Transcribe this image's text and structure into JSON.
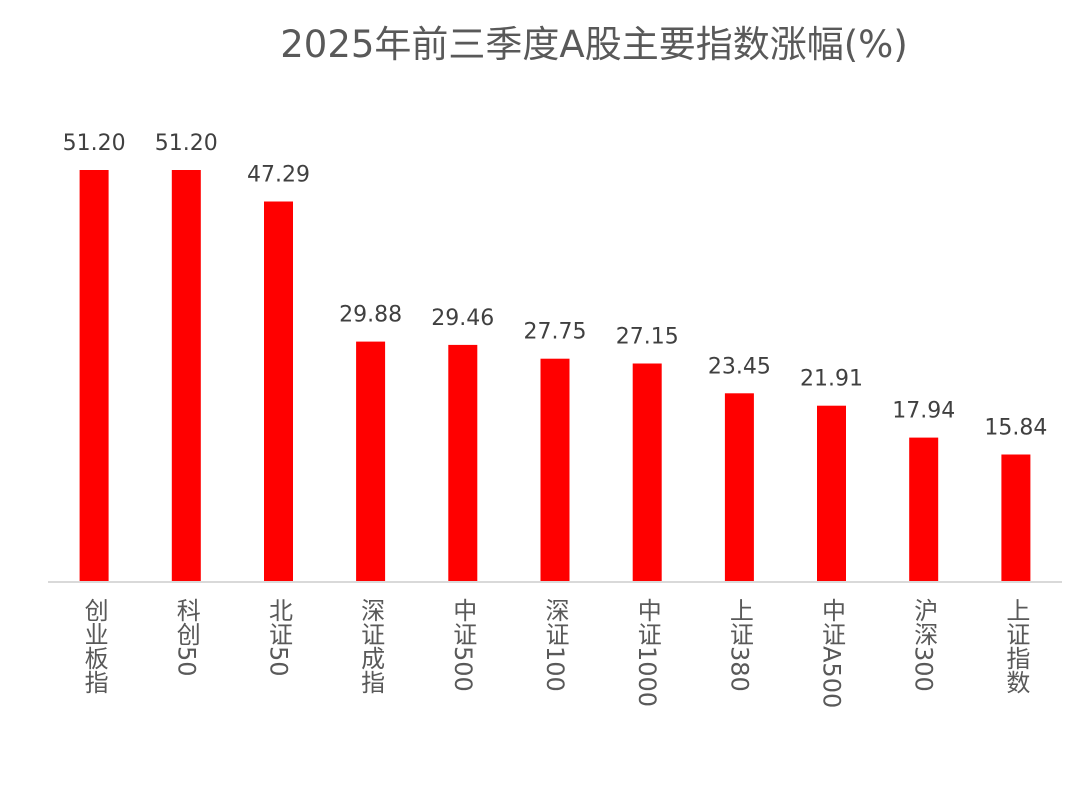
{
  "chart_data": {
    "type": "bar",
    "title": "2025年前三季度A股主要指数涨幅(%)",
    "categories": [
      "创业板指",
      "科创50",
      "北证50",
      "深证成指",
      "中证500",
      "深证100",
      "中证1000",
      "上证380",
      "中证A500",
      "沪深300",
      "上证指数"
    ],
    "values": [
      51.2,
      51.2,
      47.29,
      29.88,
      29.46,
      27.75,
      27.15,
      23.45,
      21.91,
      17.94,
      15.84
    ],
    "value_labels": [
      "51.20",
      "51.20",
      "47.29",
      "29.88",
      "29.46",
      "27.75",
      "27.15",
      "23.45",
      "21.91",
      "17.94",
      "15.84"
    ],
    "xlabel": "",
    "ylabel": "",
    "ylim": [
      0,
      51.2
    ],
    "grid": false,
    "legend": "none",
    "bar_color": "#FF0000",
    "axis_color": "#D9D9D9"
  }
}
